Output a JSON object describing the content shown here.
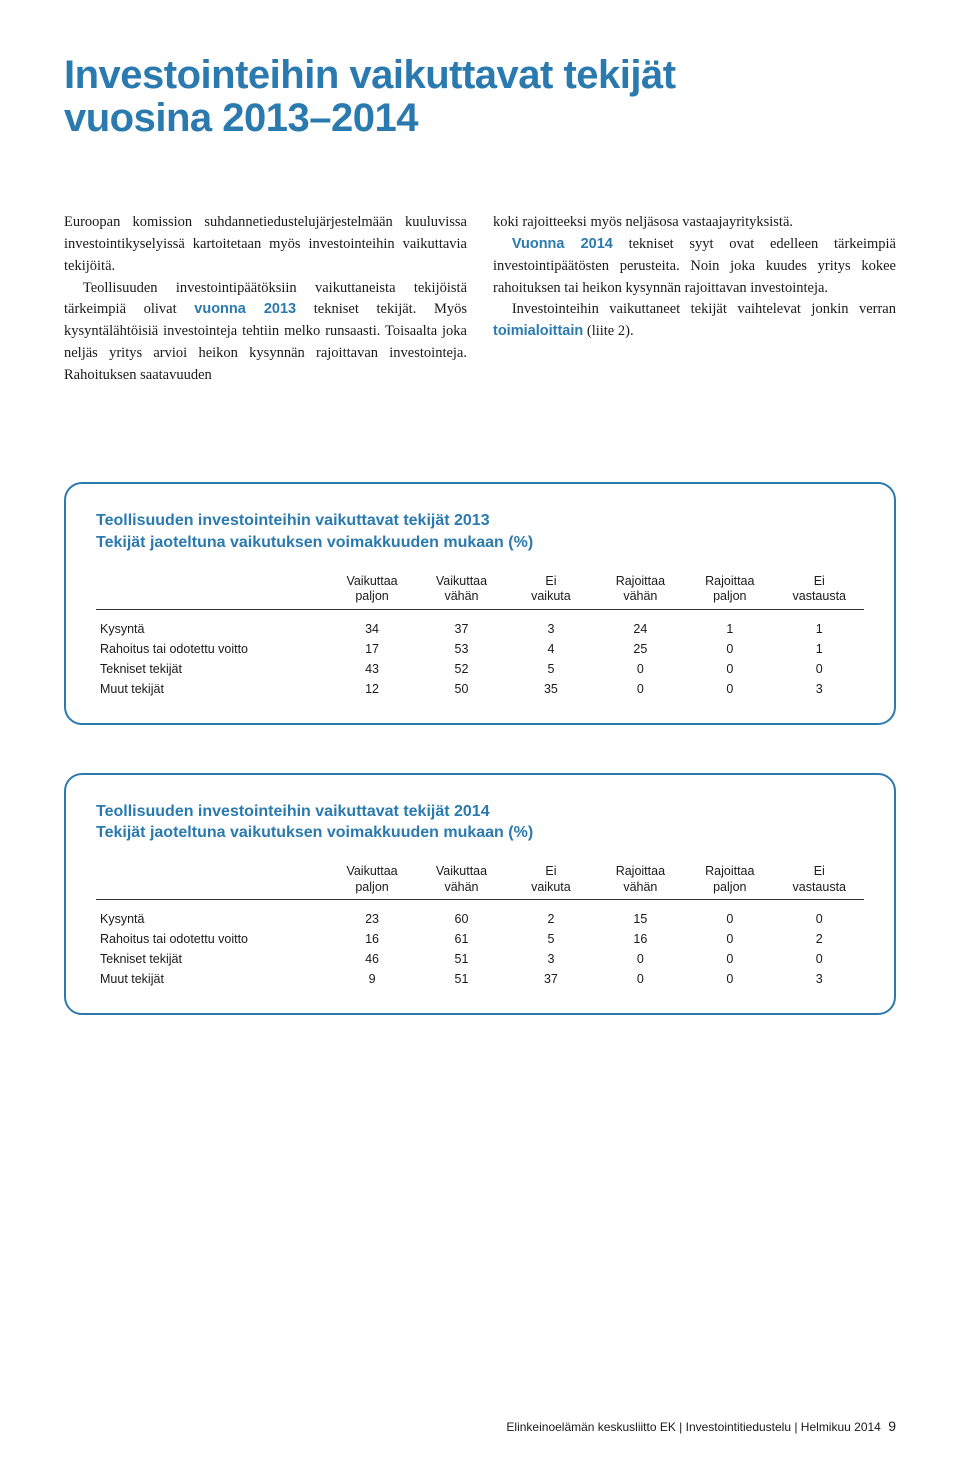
{
  "title": {
    "line1": "Investointeihin vaikuttavat tekijät",
    "line2": "vuosina 2013–2014",
    "color": "#2a7aaf",
    "fontsize": 40
  },
  "body": {
    "col1": {
      "p1_a": "Euroopan komission suhdannetiedustelujärjestelmään kuuluvissa investointikyselyissä kartoitetaan myös investointeihin vaikuttavia tekijöitä.",
      "p2_a": "Teollisuuden investointipäätöksiin vaikuttaneista tekijöistä tärkeimpiä olivat ",
      "p2_accent": "vuonna 2013",
      "p2_b": " tekniset tekijät. Myös kysyntälähtöisiä investointeja tehtiin melko runsaasti. Toisaalta joka neljäs yritys arvioi heikon kysynnän rajoittavan investointeja. Rahoituksen saatavuuden"
    },
    "col2": {
      "p1_a": "koki rajoitteeksi myös neljäsosa vastaajayrityksistä.",
      "p2_accent": "Vuonna 2014",
      "p2_a": " tekniset syyt ovat edelleen tärkeimpiä investointipäätösten perusteita. Noin joka kuudes yritys kokee rahoituksen tai heikon kysynnän rajoittavan investointeja.",
      "p3_a": "Investointeihin vaikuttaneet tekijät vaihtelevat jonkin verran ",
      "p3_accent": "toimialoittain",
      "p3_b": " (liite 2)."
    }
  },
  "columns_header": {
    "c0": "",
    "c1a": "Vaikuttaa",
    "c1b": "paljon",
    "c2a": "Vaikuttaa",
    "c2b": "vähän",
    "c3a": "Ei",
    "c3b": "vaikuta",
    "c4a": "Rajoittaa",
    "c4b": "vähän",
    "c5a": "Rajoittaa",
    "c5b": "paljon",
    "c6a": "Ei",
    "c6b": "vastausta"
  },
  "row_labels": {
    "r0": "Kysyntä",
    "r1": "Rahoitus tai odotettu voitto",
    "r2": "Tekniset tekijät",
    "r3": "Muut tekijät"
  },
  "table2013": {
    "border_color": "#2a7aaf",
    "title_color": "#2a7aaf",
    "title_l1": "Teollisuuden investointeihin vaikuttavat tekijät 2013",
    "title_l2": "Tekijät jaoteltuna vaikutuksen voimakkuuden mukaan (%)",
    "rows": [
      [
        "34",
        "37",
        "3",
        "24",
        "1",
        "1"
      ],
      [
        "17",
        "53",
        "4",
        "25",
        "0",
        "1"
      ],
      [
        "43",
        "52",
        "5",
        "0",
        "0",
        "0"
      ],
      [
        "12",
        "50",
        "35",
        "0",
        "0",
        "3"
      ]
    ]
  },
  "table2014": {
    "border_color": "#2a7aaf",
    "title_color": "#2a7aaf",
    "title_l1": "Teollisuuden investointeihin vaikuttavat tekijät 2014",
    "title_l2": "Tekijät jaoteltuna vaikutuksen voimakkuuden mukaan (%)",
    "rows": [
      [
        "23",
        "60",
        "2",
        "15",
        "0",
        "0"
      ],
      [
        "16",
        "61",
        "5",
        "16",
        "0",
        "2"
      ],
      [
        "46",
        "51",
        "3",
        "0",
        "0",
        "0"
      ],
      [
        "9",
        "51",
        "37",
        "0",
        "0",
        "3"
      ]
    ]
  },
  "footer": {
    "text": "Elinkeinoelämän keskusliitto EK  |  Investointitiedustelu  |  Helmikuu 2014",
    "page": "9"
  }
}
